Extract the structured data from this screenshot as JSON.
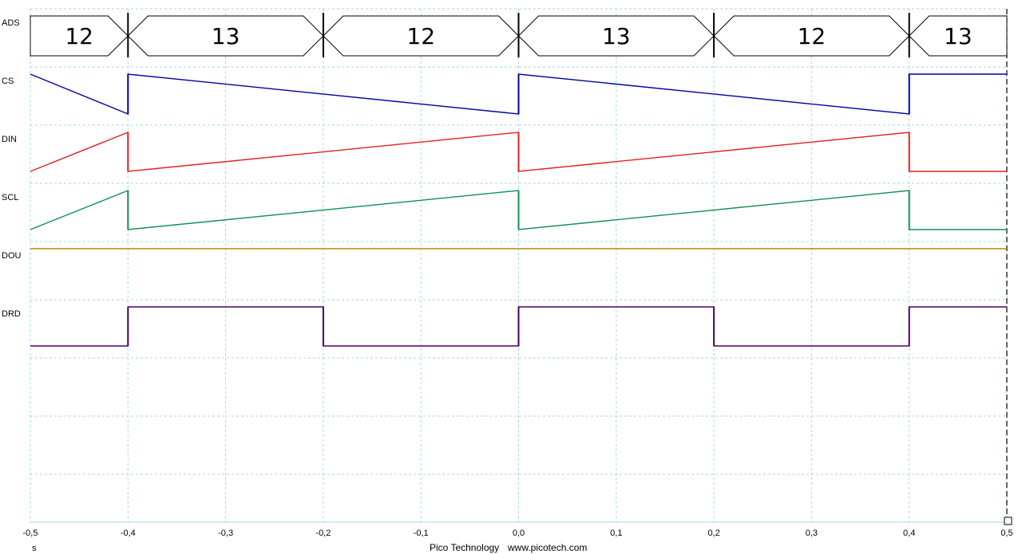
{
  "footer": {
    "brand": "Pico Technology",
    "url": "www.picotech.com"
  },
  "colors": {
    "grid": "#9fd8ec",
    "ADS": "#000000",
    "CS": "#0000a0",
    "DIN": "#e02020",
    "SCL": "#109050",
    "DOU": "#b8860b",
    "DRD": "#4b0060"
  },
  "chart_data": {
    "type": "line",
    "title": "",
    "xlabel": "",
    "x_unit": "s",
    "xlim": [
      -0.5,
      0.5
    ],
    "x_ticks": [
      -0.5,
      -0.4,
      -0.3,
      -0.2,
      -0.1,
      0.0,
      0.1,
      0.2,
      0.3,
      0.4,
      0.5
    ],
    "x_tick_labels": [
      "-0,5",
      "-0,4",
      "-0,3",
      "-0,2",
      "-0,1",
      "0,0",
      "0,1",
      "0,2",
      "0,3",
      "0,4",
      "0,5"
    ],
    "grid": true,
    "bus": {
      "name": "ADS",
      "segments": [
        {
          "start": -0.5,
          "end": -0.4,
          "value": "12"
        },
        {
          "start": -0.4,
          "end": -0.2,
          "value": "13"
        },
        {
          "start": -0.2,
          "end": 0.0,
          "value": "12"
        },
        {
          "start": 0.0,
          "end": 0.2,
          "value": "13"
        },
        {
          "start": 0.2,
          "end": 0.4,
          "value": "12"
        },
        {
          "start": 0.4,
          "end": 0.5,
          "value": "13"
        }
      ]
    },
    "series": [
      {
        "name": "CS",
        "levels": [
          [
            -0.5,
            1
          ],
          [
            -0.4,
            0
          ],
          [
            -0.4,
            1
          ],
          [
            0.0,
            0
          ],
          [
            0.0,
            1
          ],
          [
            0.4,
            0
          ],
          [
            0.4,
            1
          ],
          [
            0.5,
            1
          ]
        ]
      },
      {
        "name": "DIN",
        "levels": [
          [
            -0.5,
            0
          ],
          [
            -0.4,
            1
          ],
          [
            -0.4,
            0
          ],
          [
            0.0,
            1
          ],
          [
            0.0,
            0
          ],
          [
            0.4,
            1
          ],
          [
            0.4,
            0
          ],
          [
            0.5,
            0
          ]
        ]
      },
      {
        "name": "SCL",
        "levels": [
          [
            -0.5,
            0
          ],
          [
            -0.4,
            1
          ],
          [
            -0.4,
            0
          ],
          [
            0.0,
            1
          ],
          [
            0.0,
            0
          ],
          [
            0.4,
            1
          ],
          [
            0.4,
            0
          ],
          [
            0.5,
            0
          ]
        ]
      },
      {
        "name": "DOU",
        "levels": [
          [
            -0.5,
            1
          ],
          [
            0.5,
            1
          ]
        ]
      },
      {
        "name": "DRD",
        "levels": [
          [
            -0.5,
            0
          ],
          [
            -0.4,
            0
          ],
          [
            -0.4,
            1
          ],
          [
            -0.2,
            1
          ],
          [
            -0.2,
            0
          ],
          [
            0.0,
            0
          ],
          [
            0.0,
            1
          ],
          [
            0.2,
            1
          ],
          [
            0.2,
            0
          ],
          [
            0.4,
            0
          ],
          [
            0.4,
            1
          ],
          [
            0.5,
            1
          ]
        ]
      }
    ]
  }
}
